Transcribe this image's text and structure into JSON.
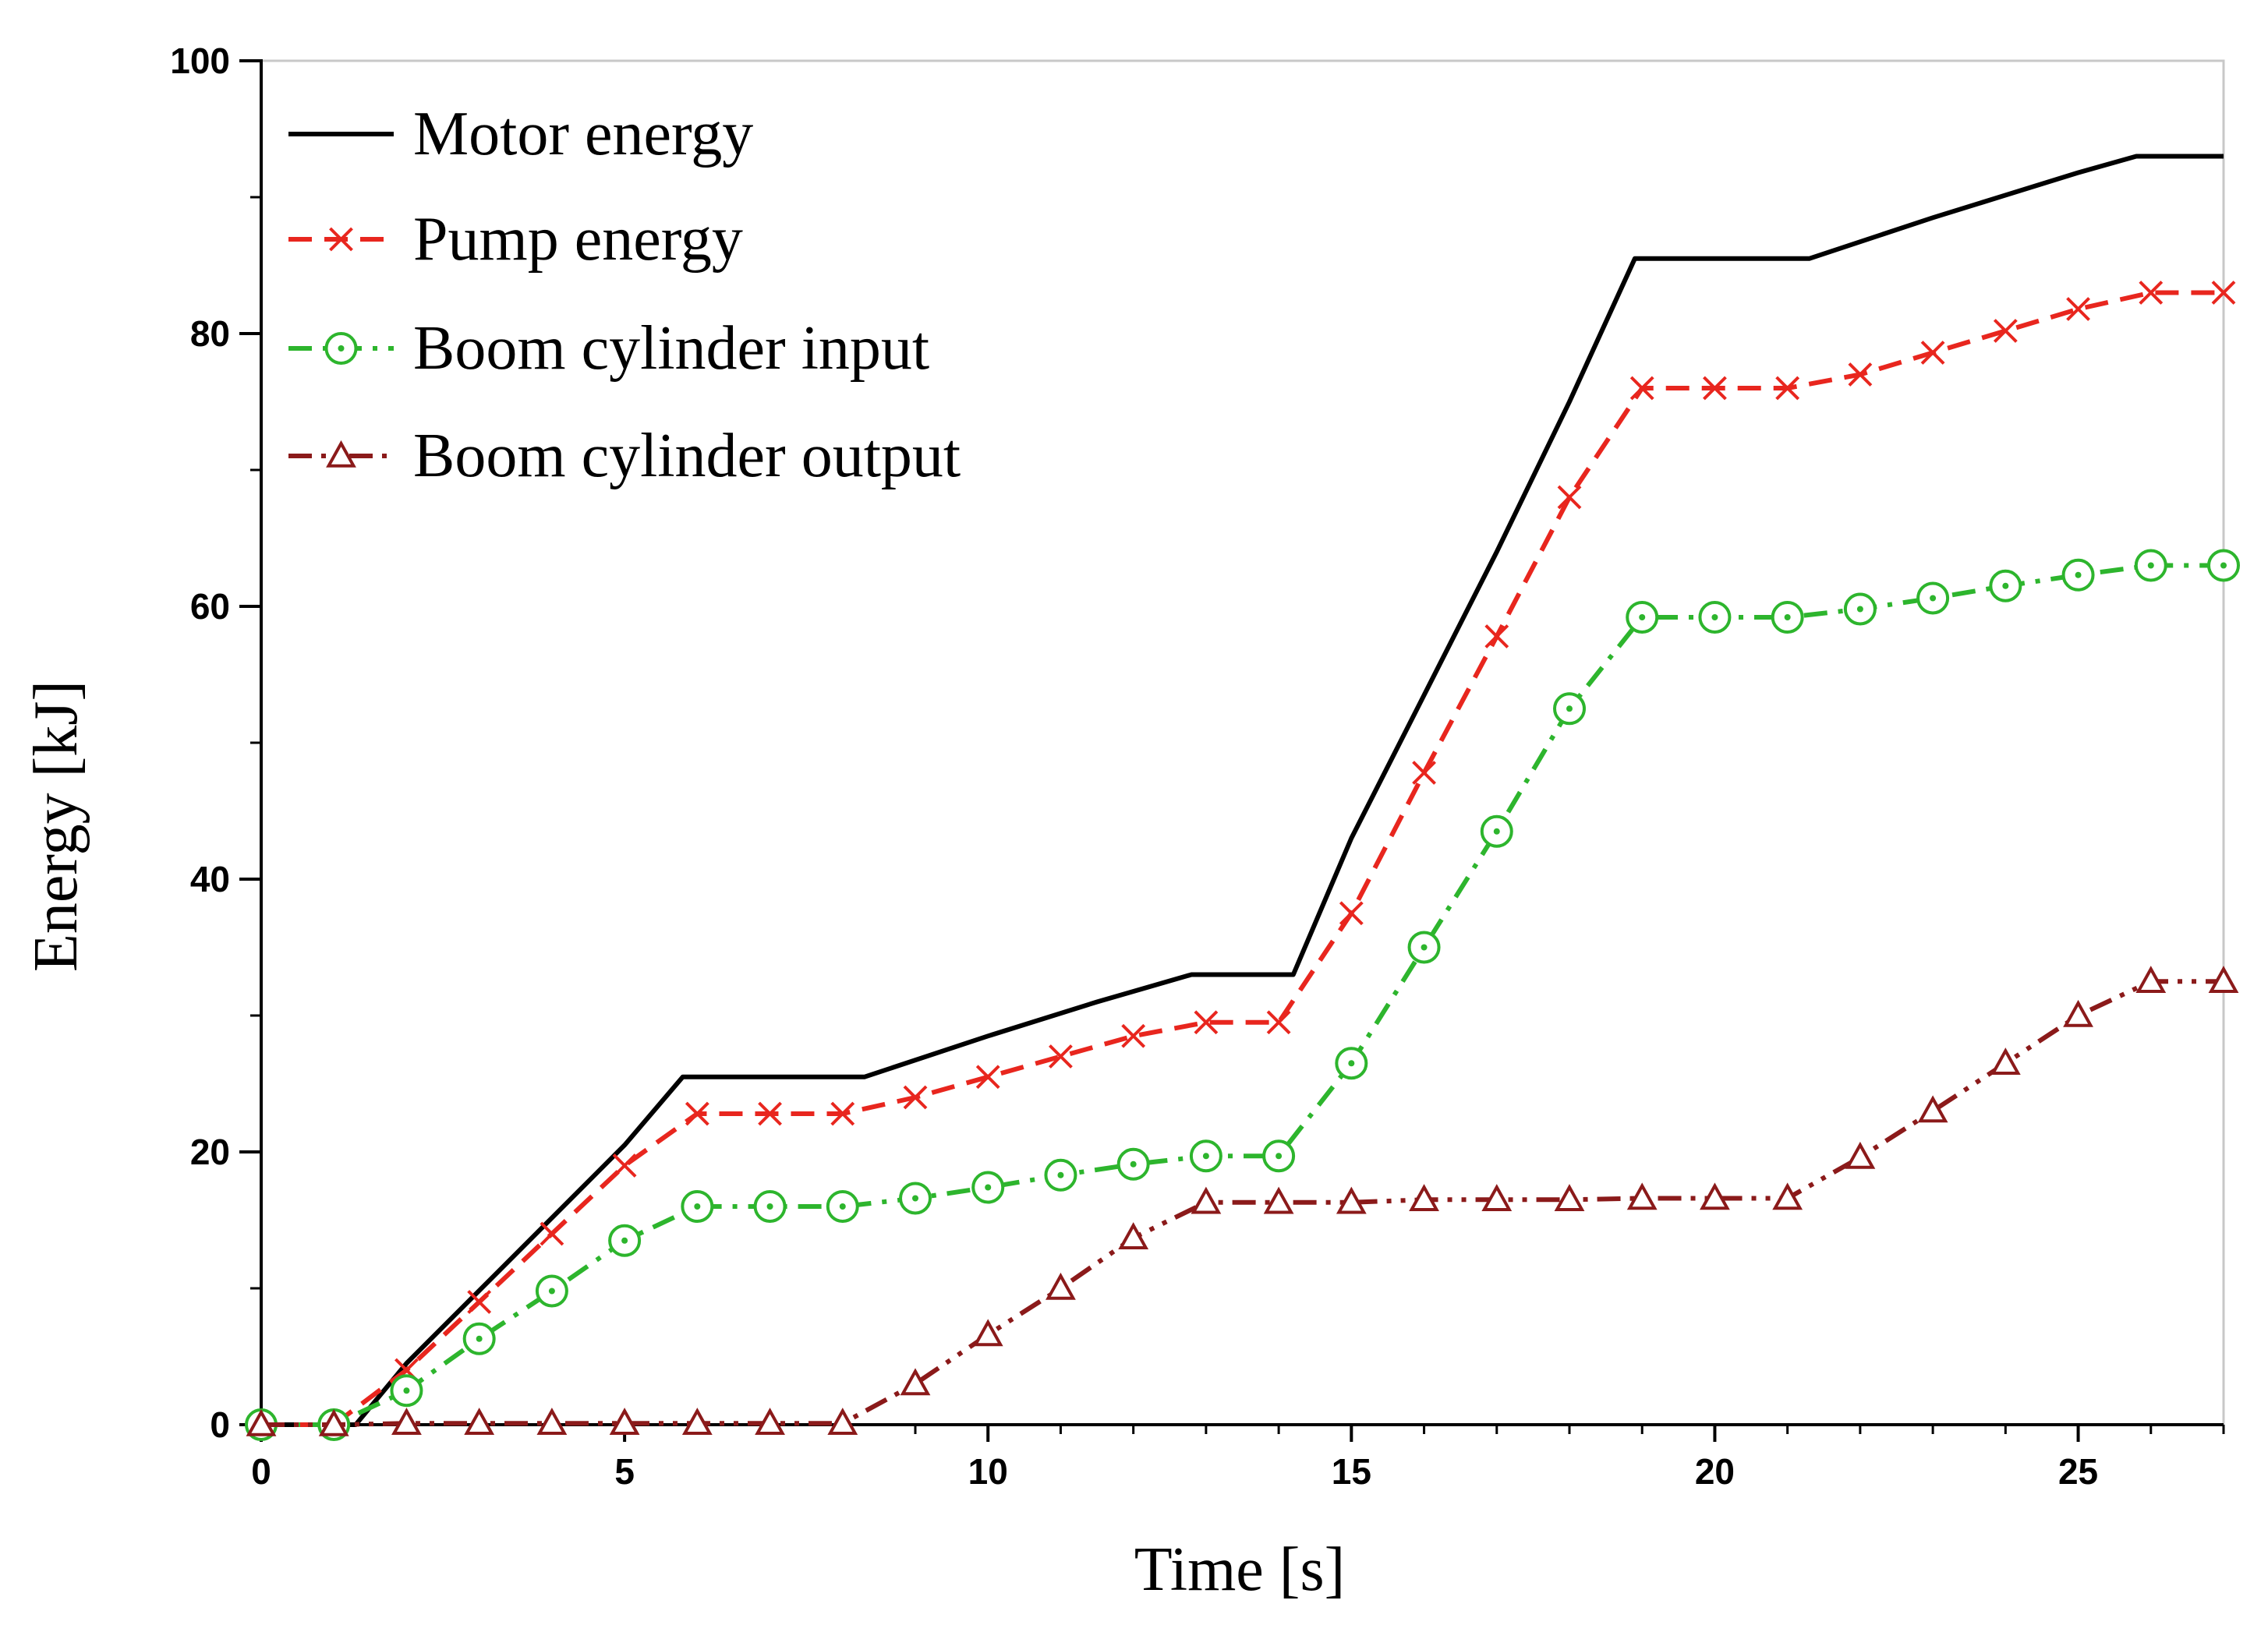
{
  "chart_data": {
    "type": "line",
    "title": "",
    "xlabel": "Time [s]",
    "ylabel": "Energy [kJ]",
    "xlim": [
      0,
      27
    ],
    "ylim": [
      0,
      100
    ],
    "x_ticks": [
      0,
      5,
      10,
      15,
      20,
      25
    ],
    "x_tick_labels": [
      "0",
      "5",
      "10",
      "15",
      "20",
      "25"
    ],
    "y_ticks": [
      0,
      20,
      40,
      60,
      80,
      100
    ],
    "y_tick_labels": [
      "0",
      "20",
      "40",
      "60",
      "80",
      "100"
    ],
    "y_minor_ticks": [
      10,
      30,
      50,
      70,
      90
    ],
    "grid": false,
    "legend_position": "top-left",
    "series": [
      {
        "name": "Motor energy",
        "color": "#000000",
        "style": "solid",
        "marker": "none",
        "x": [
          0,
          1.3,
          2,
          5,
          5.8,
          8.3,
          10,
          11.5,
          12.8,
          14.2,
          15,
          16,
          17,
          18,
          18.9,
          21.3,
          23,
          25,
          25.8,
          27
        ],
        "y": [
          0,
          0,
          4.5,
          20.5,
          25.5,
          25.5,
          28.5,
          31,
          33,
          33,
          43,
          53.5,
          64,
          75,
          85.5,
          85.5,
          88.5,
          91.8,
          93,
          93
        ]
      },
      {
        "name": "Pump energy",
        "color": "#e8261e",
        "style": "dashed",
        "marker": "x",
        "x": [
          0,
          1,
          2,
          3,
          4,
          5,
          6,
          7,
          8,
          9,
          10,
          11,
          12,
          13,
          14,
          15,
          16,
          17,
          18,
          19,
          20,
          21,
          22,
          23,
          24,
          25,
          26,
          27
        ],
        "y": [
          0,
          0,
          4,
          9,
          14,
          19,
          22.8,
          22.8,
          22.8,
          24,
          25.5,
          27,
          28.5,
          29.5,
          29.5,
          37.5,
          47.8,
          57.8,
          68,
          76,
          76,
          76,
          77,
          78.6,
          80.2,
          81.8,
          83,
          83
        ]
      },
      {
        "name": "Boom cylinder input",
        "color": "#2db52d",
        "style": "dashdot",
        "marker": "circle-dot",
        "x": [
          0,
          1,
          2,
          3,
          4,
          5,
          6,
          7,
          8,
          9,
          10,
          11,
          12,
          13,
          14,
          15,
          16,
          17,
          18,
          19,
          20,
          21,
          22,
          23,
          24,
          25,
          26,
          27
        ],
        "y": [
          0,
          0,
          2.5,
          6.3,
          9.8,
          13.5,
          16,
          16,
          16,
          16.6,
          17.4,
          18.3,
          19.1,
          19.7,
          19.7,
          26.5,
          35,
          43.5,
          52.5,
          59.2,
          59.2,
          59.2,
          59.8,
          60.6,
          61.5,
          62.3,
          63,
          63
        ]
      },
      {
        "name": "Boom cylinder output",
        "color": "#8b1a1a",
        "style": "dashdotdot",
        "marker": "triangle",
        "x": [
          0,
          1,
          2,
          3,
          4,
          5,
          6,
          7,
          8,
          9,
          10,
          11,
          12,
          13,
          14,
          15,
          16,
          17,
          18,
          19,
          20,
          21,
          22,
          23,
          24,
          25,
          26,
          27
        ],
        "y": [
          0,
          0,
          0.1,
          0.1,
          0.1,
          0.1,
          0.1,
          0.1,
          0.1,
          3,
          6.6,
          10,
          13.7,
          16.3,
          16.3,
          16.3,
          16.5,
          16.5,
          16.5,
          16.6,
          16.6,
          16.6,
          19.6,
          23,
          26.5,
          30,
          32.5,
          32.5
        ]
      }
    ]
  }
}
